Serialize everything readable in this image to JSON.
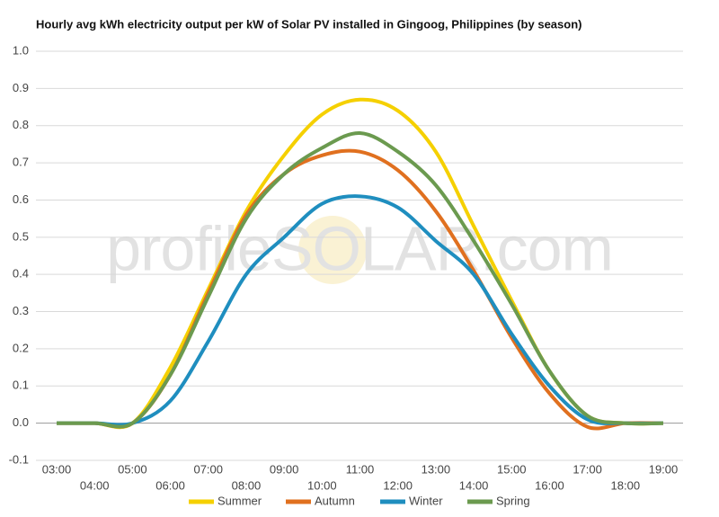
{
  "chart_data": {
    "type": "line",
    "title": "Hourly avg kWh electricity output per kW of Solar PV installed in Gingoog, Philippines (by season)",
    "watermark": "profileSOLAR.com",
    "categories": [
      "03:00",
      "04:00",
      "05:00",
      "06:00",
      "07:00",
      "08:00",
      "09:00",
      "10:00",
      "11:00",
      "12:00",
      "13:00",
      "14:00",
      "15:00",
      "16:00",
      "17:00",
      "18:00",
      "19:00"
    ],
    "series": [
      {
        "name": "Summer",
        "color": "#f5d000",
        "values": [
          0,
          0,
          0,
          0.15,
          0.36,
          0.57,
          0.72,
          0.83,
          0.87,
          0.84,
          0.73,
          0.53,
          0.33,
          0.14,
          0.02,
          0,
          0
        ]
      },
      {
        "name": "Autumn",
        "color": "#e0701f",
        "values": [
          0,
          0,
          0,
          0.13,
          0.35,
          0.56,
          0.67,
          0.72,
          0.73,
          0.68,
          0.57,
          0.41,
          0.23,
          0.08,
          -0.01,
          0,
          0
        ]
      },
      {
        "name": "Winter",
        "color": "#1f8ebf",
        "values": [
          0,
          0,
          0,
          0.06,
          0.22,
          0.4,
          0.5,
          0.59,
          0.61,
          0.58,
          0.49,
          0.4,
          0.24,
          0.1,
          0.01,
          0,
          0
        ]
      },
      {
        "name": "Spring",
        "color": "#6b9a4f",
        "values": [
          0,
          0,
          0,
          0.13,
          0.34,
          0.55,
          0.67,
          0.74,
          0.78,
          0.73,
          0.64,
          0.49,
          0.32,
          0.14,
          0.02,
          0,
          0
        ]
      }
    ],
    "ylim": [
      -0.1,
      1.0
    ],
    "yticks": [
      {
        "value": 1.0,
        "label": "1.0"
      },
      0.9,
      0.8,
      0.7,
      0.6,
      0.5,
      0.4,
      0.3,
      0.2,
      0.1,
      {
        "value": 0,
        "label": "0.0"
      },
      -0.1
    ],
    "grid": true,
    "legend": "bottom"
  }
}
